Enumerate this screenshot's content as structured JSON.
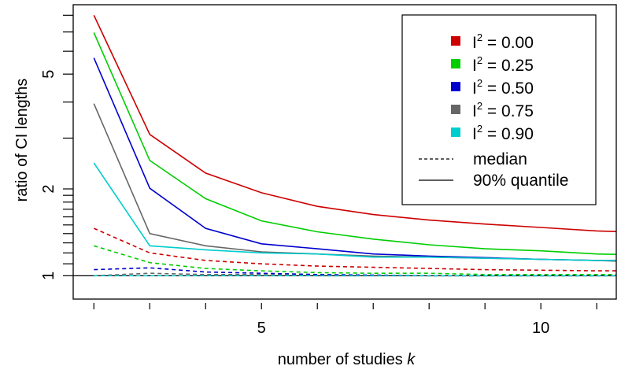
{
  "chart_data": {
    "type": "line",
    "title": "",
    "xlabel": "number of studies",
    "xlabel_italic_var": "k",
    "ylabel": "ratio of CI lengths",
    "y_scale": "log",
    "xlim": [
      1.63,
      11.35
    ],
    "ylim": [
      0.83,
      8.7
    ],
    "x_ticks": [
      2,
      3,
      4,
      5,
      6,
      7,
      8,
      9,
      10,
      11
    ],
    "x_tick_labels": [
      {
        "value": 5,
        "label": "5"
      },
      {
        "value": 10,
        "label": "10"
      }
    ],
    "y_ticks": [
      1,
      1.1,
      1.2,
      1.3,
      1.4,
      1.5,
      1.6,
      1.7,
      1.8,
      1.9,
      2,
      3,
      4,
      5,
      6,
      7,
      8
    ],
    "y_tick_labels": [
      {
        "value": 1,
        "label": "1"
      },
      {
        "value": 2,
        "label": "2"
      },
      {
        "value": 5,
        "label": "5"
      }
    ],
    "reference_line": 1,
    "grid": false,
    "legend_position": "top-right",
    "x": [
      2,
      3,
      4,
      5,
      6,
      7,
      8,
      9,
      10,
      11,
      12
    ],
    "groups": [
      {
        "name": "0.00",
        "color": "#cd0000",
        "quantile90": [
          8.0,
          3.09,
          2.27,
          1.94,
          1.74,
          1.63,
          1.56,
          1.51,
          1.47,
          1.43,
          1.41
        ],
        "median": [
          1.46,
          1.2,
          1.13,
          1.1,
          1.08,
          1.07,
          1.06,
          1.05,
          1.045,
          1.04,
          1.04
        ]
      },
      {
        "name": "0.25",
        "color": "#00cd00",
        "quantile90": [
          6.96,
          2.51,
          1.85,
          1.55,
          1.42,
          1.34,
          1.28,
          1.24,
          1.22,
          1.19,
          1.18
        ],
        "median": [
          1.27,
          1.11,
          1.06,
          1.04,
          1.025,
          1.02,
          1.02,
          1.01,
          1.01,
          1.01,
          1.01
        ]
      },
      {
        "name": "0.50",
        "color": "#0000cd",
        "quantile90": [
          5.69,
          2.01,
          1.46,
          1.29,
          1.24,
          1.19,
          1.17,
          1.156,
          1.14,
          1.13,
          1.13
        ],
        "median": [
          1.05,
          1.065,
          1.03,
          1.02,
          1.01,
          1.005,
          1.0,
          1.0,
          1.0,
          1.0,
          1.0
        ]
      },
      {
        "name": "0.75",
        "color": "#666666",
        "quantile90": [
          3.95,
          1.4,
          1.27,
          1.21,
          1.19,
          1.17,
          1.16,
          1.15,
          1.14,
          1.13,
          1.11
        ],
        "median": [
          1.0,
          1.02,
          1.01,
          1.01,
          1.0,
          1.0,
          1.0,
          1.0,
          1.0,
          1.0,
          1.0
        ]
      },
      {
        "name": "0.90",
        "color": "#00cdcd",
        "quantile90": [
          2.46,
          1.27,
          1.23,
          1.2,
          1.19,
          1.16,
          1.16,
          1.15,
          1.14,
          1.13,
          1.13
        ],
        "median": [
          1.0,
          1.0,
          1.0,
          1.0,
          1.0,
          1.0,
          1.0,
          1.0,
          1.0,
          1.0,
          1.0
        ]
      }
    ],
    "legend": {
      "group_prefix": "I",
      "group_superscript": "2",
      "group_equals": " = ",
      "median_label": "median",
      "quantile_label": "90% quantile"
    }
  }
}
